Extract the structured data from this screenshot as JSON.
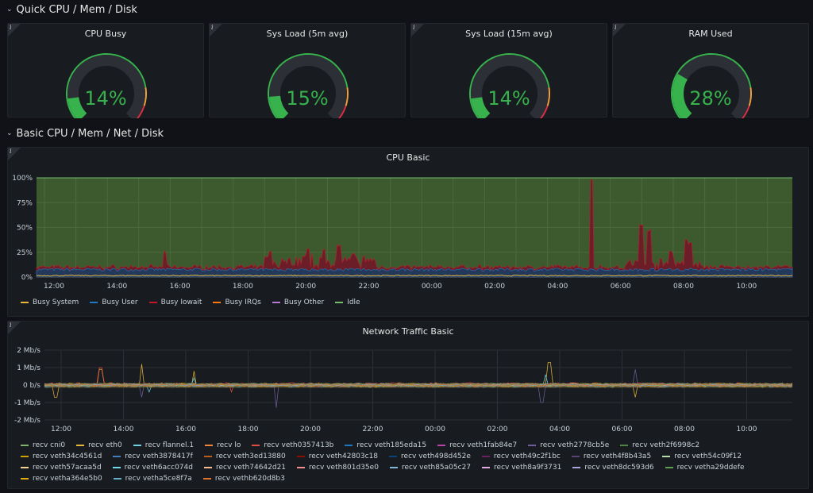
{
  "rows": {
    "quick": "Quick CPU / Mem / Disk",
    "basic": "Basic CPU / Mem / Net / Disk"
  },
  "info_icon": "i",
  "gauges": [
    {
      "title": "CPU Busy",
      "value": "14%",
      "fraction": 0.14
    },
    {
      "title": "Sys Load (5m avg)",
      "value": "15%",
      "fraction": 0.15
    },
    {
      "title": "Sys Load (15m avg)",
      "value": "14%",
      "fraction": 0.14
    },
    {
      "title": "RAM Used",
      "value": "28%",
      "fraction": 0.28
    }
  ],
  "colors": {
    "background": "#111217",
    "panel": "#181b1f",
    "gauge_green": "#37b24d",
    "gauge_track": "#2c2f35",
    "threshold_orange": "#f2a03c",
    "threshold_red": "#e02f44",
    "idle_fill": "#3d5a2f",
    "idle_line": "#73bf69",
    "busy_user_fill": "#243859",
    "busy_iowait_fill": "#6b1e28"
  },
  "cpu_panel": {
    "title": "CPU Basic",
    "y_ticks": [
      "100%",
      "75%",
      "50%",
      "25%",
      "0%"
    ],
    "x_ticks": [
      "12:00",
      "14:00",
      "16:00",
      "18:00",
      "20:00",
      "22:00",
      "00:00",
      "02:00",
      "04:00",
      "06:00",
      "08:00",
      "10:00"
    ],
    "legend": [
      {
        "label": "Busy System",
        "color": "#eab839"
      },
      {
        "label": "Busy User",
        "color": "#1f78c1"
      },
      {
        "label": "Busy Iowait",
        "color": "#c4162a"
      },
      {
        "label": "Busy IRQs",
        "color": "#ff780a"
      },
      {
        "label": "Busy Other",
        "color": "#b877d9"
      },
      {
        "label": "Idle",
        "color": "#73bf69"
      }
    ]
  },
  "net_panel": {
    "title": "Network Traffic Basic",
    "y_ticks": [
      "2 Mb/s",
      "1 Mb/s",
      "0 b/s",
      "-1 Mb/s",
      "-2 Mb/s"
    ],
    "x_ticks": [
      "12:00",
      "14:00",
      "16:00",
      "18:00",
      "20:00",
      "22:00",
      "00:00",
      "02:00",
      "04:00",
      "06:00",
      "08:00",
      "10:00"
    ],
    "legend": [
      {
        "label": "recv cni0",
        "color": "#7eb26d"
      },
      {
        "label": "recv eth0",
        "color": "#eab839"
      },
      {
        "label": "recv flannel.1",
        "color": "#6ed0e0"
      },
      {
        "label": "recv lo",
        "color": "#ef843c"
      },
      {
        "label": "recv veth0357413b",
        "color": "#e24d42"
      },
      {
        "label": "recv veth185eda15",
        "color": "#1f78c1"
      },
      {
        "label": "recv veth1fab84e7",
        "color": "#ba43a9"
      },
      {
        "label": "recv veth2778cb5e",
        "color": "#705da0"
      },
      {
        "label": "recv veth2f6998c2",
        "color": "#508642"
      },
      {
        "label": "recv veth34c4561d",
        "color": "#cca300"
      },
      {
        "label": "recv veth3878417f",
        "color": "#447ebc"
      },
      {
        "label": "recv veth3ed13880",
        "color": "#c15c17"
      },
      {
        "label": "recv veth42803c18",
        "color": "#890f02"
      },
      {
        "label": "recv veth498d452e",
        "color": "#0a437c"
      },
      {
        "label": "recv veth49c2f1bc",
        "color": "#6d1f62"
      },
      {
        "label": "recv veth4f8b43a5",
        "color": "#584477"
      },
      {
        "label": "recv veth54c09f12",
        "color": "#b7dbab"
      },
      {
        "label": "recv veth57acaa5d",
        "color": "#f4d598"
      },
      {
        "label": "recv veth6acc074d",
        "color": "#70dbed"
      },
      {
        "label": "recv veth74642d21",
        "color": "#f9ba8f"
      },
      {
        "label": "recv veth801d35e0",
        "color": "#f29191"
      },
      {
        "label": "recv veth85a05c27",
        "color": "#82b5d8"
      },
      {
        "label": "recv veth8a9f3731",
        "color": "#e5a8e2"
      },
      {
        "label": "recv veth8dc593d6",
        "color": "#aea2e0"
      },
      {
        "label": "recv vetha29ddefe",
        "color": "#629e51"
      },
      {
        "label": "recv vetha364e5b0",
        "color": "#e5ac0e"
      },
      {
        "label": "recv vetha5ce8f7a",
        "color": "#64b0c8"
      },
      {
        "label": "recv vethb620d8b3",
        "color": "#e0752d"
      }
    ]
  }
}
